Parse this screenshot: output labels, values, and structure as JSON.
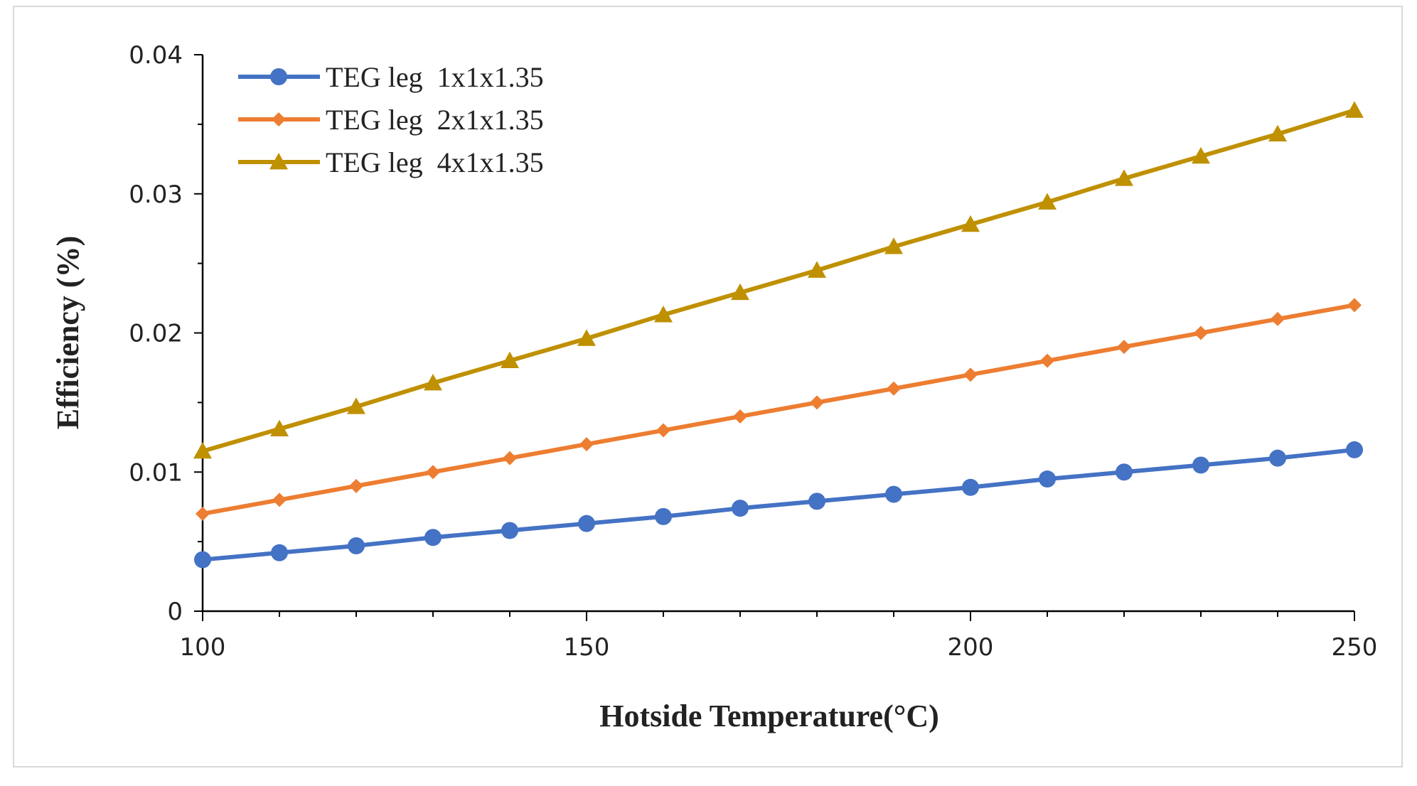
{
  "chart_data": {
    "type": "line",
    "title": "",
    "xlabel": "Hotside Temperature(°C)",
    "ylabel": "Efficiency (%)",
    "xlim": [
      100,
      250
    ],
    "ylim": [
      0,
      0.04
    ],
    "x_ticks": [
      "100",
      "150",
      "200",
      "250"
    ],
    "y_ticks": [
      "0",
      "0.01",
      "0.02",
      "0.03",
      "0.04"
    ],
    "grid": false,
    "legend_position": "top-left",
    "x": [
      100,
      110,
      120,
      130,
      140,
      150,
      160,
      170,
      180,
      190,
      200,
      210,
      220,
      230,
      240,
      250
    ],
    "series": [
      {
        "name": "TEG leg  1x1x1.35",
        "color": "#4472c4",
        "marker": "circle",
        "values": [
          0.0037,
          0.0042,
          0.0047,
          0.0053,
          0.0058,
          0.0063,
          0.0068,
          0.0074,
          0.0079,
          0.0084,
          0.0089,
          0.0095,
          0.01,
          0.0105,
          0.011,
          0.0116
        ]
      },
      {
        "name": "TEG leg  2x1x1.35",
        "color": "#ed7d31",
        "marker": "diamond",
        "values": [
          0.007,
          0.008,
          0.009,
          0.01,
          0.011,
          0.012,
          0.013,
          0.014,
          0.015,
          0.016,
          0.017,
          0.018,
          0.019,
          0.02,
          0.021,
          0.022
        ]
      },
      {
        "name": "TEG leg  4x1x1.35",
        "color": "#bf9000",
        "marker": "triangle",
        "values": [
          0.0115,
          0.0131,
          0.0147,
          0.0164,
          0.018,
          0.0196,
          0.0213,
          0.0229,
          0.0245,
          0.0262,
          0.0278,
          0.0294,
          0.0311,
          0.0327,
          0.0343,
          0.036
        ]
      }
    ]
  }
}
